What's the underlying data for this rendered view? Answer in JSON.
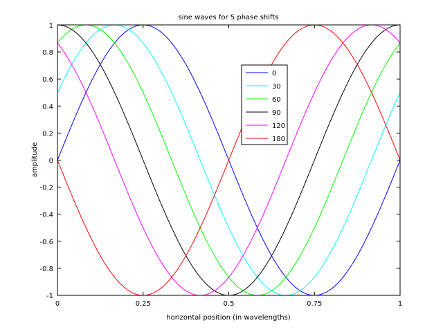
{
  "chart_data": {
    "type": "line",
    "title": "sine waves for 5 phase shifts",
    "xlabel": "horizontal position (in wavelengths)",
    "ylabel": "amplitude",
    "xlim": [
      0,
      1
    ],
    "ylim": [
      -1,
      1
    ],
    "x_ticks": [
      0,
      0.25,
      0.5,
      0.75,
      1
    ],
    "x_tick_labels": [
      "0",
      "0.25",
      "0.5",
      "0.75",
      "1"
    ],
    "y_ticks": [
      -1,
      -0.8,
      -0.6,
      -0.4,
      -0.2,
      0,
      0.2,
      0.4,
      0.6,
      0.8,
      1
    ],
    "y_tick_labels": [
      "-1",
      "-0.8",
      "-0.6",
      "-0.4",
      "-0.2",
      "0",
      "0.2",
      "0.4",
      "0.6",
      "0.8",
      "1"
    ],
    "grid": false,
    "legend_position": "top-center",
    "function": "y = sin(2*pi*x + phase)",
    "series": [
      {
        "name": "0",
        "phase_deg": 0,
        "color": "#0000ff"
      },
      {
        "name": "30",
        "phase_deg": 30,
        "color": "#00ffff"
      },
      {
        "name": "60",
        "phase_deg": 60,
        "color": "#00ff00"
      },
      {
        "name": "90",
        "phase_deg": 90,
        "color": "#000000"
      },
      {
        "name": "120",
        "phase_deg": 120,
        "color": "#ff00ff"
      },
      {
        "name": "180",
        "phase_deg": 180,
        "color": "#ff0000"
      }
    ]
  }
}
